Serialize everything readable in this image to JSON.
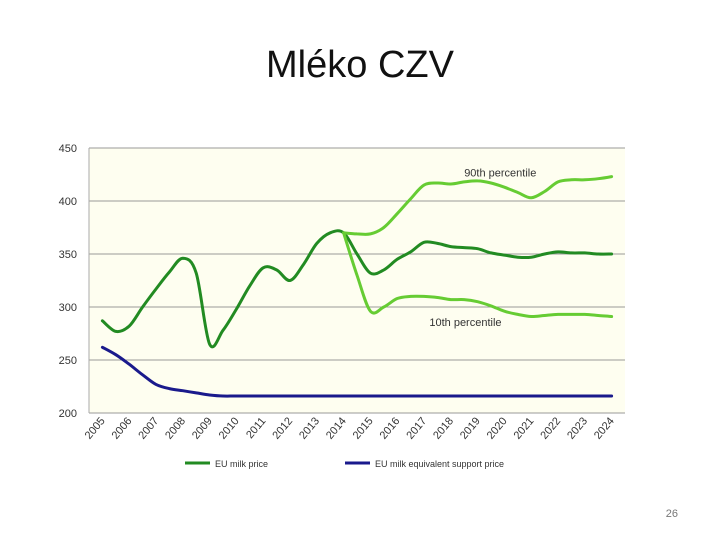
{
  "slide": {
    "title": "Mléko CZV",
    "page_number": "26"
  },
  "chart_data": {
    "type": "line",
    "title": "",
    "xlabel": "",
    "ylabel": "",
    "categories": [
      "2005",
      "2006",
      "2007",
      "2008",
      "2009",
      "2010",
      "2011",
      "2012",
      "2013",
      "2014",
      "2015",
      "2016",
      "2017",
      "2018",
      "2019",
      "2020",
      "2021",
      "2022",
      "2023",
      "2024"
    ],
    "x": [
      2005,
      2006,
      2007,
      2008,
      2009,
      2010,
      2011,
      2012,
      2013,
      2014,
      2015,
      2016,
      2017,
      2018,
      2019,
      2020,
      2021,
      2022,
      2023,
      2024
    ],
    "ylim": [
      200,
      450
    ],
    "yticks": [
      200,
      250,
      300,
      350,
      400,
      450
    ],
    "grid": true,
    "legend_position": "bottom",
    "colors": {
      "plot_background": "#fefef0",
      "gridline": "#999999",
      "axis_text": "#333333"
    },
    "series": [
      {
        "name": "EU milk price",
        "color": "#228B22",
        "in_legend": true,
        "x": [
          2005,
          2005.5,
          2006,
          2006.5,
          2007,
          2007.5,
          2008,
          2008.5,
          2009,
          2009.5,
          2010,
          2010.5,
          2011,
          2011.5,
          2012,
          2012.5,
          2013,
          2013.5,
          2014,
          2014.5,
          2015,
          2015.5,
          2016,
          2016.5,
          2017,
          2017.5,
          2018,
          2018.5,
          2019,
          2019.5,
          2020,
          2020.5,
          2021,
          2021.5,
          2022,
          2022.5,
          2023,
          2023.5,
          2024
        ],
        "values": [
          287,
          277,
          282,
          300,
          317,
          333,
          346,
          332,
          265,
          278,
          298,
          320,
          337,
          335,
          325,
          340,
          360,
          370,
          370,
          350,
          332,
          335,
          345,
          352,
          361,
          360,
          357,
          356,
          355,
          351,
          349,
          347,
          347,
          350,
          352,
          351,
          351,
          350,
          350
        ]
      },
      {
        "name": "90th percentile",
        "color": "#66CC33",
        "in_legend": false,
        "x": [
          2014,
          2014.5,
          2015,
          2015.5,
          2016,
          2016.5,
          2017,
          2017.5,
          2018,
          2018.5,
          2019,
          2019.5,
          2020,
          2020.5,
          2021,
          2021.5,
          2022,
          2022.5,
          2023,
          2023.5,
          2024
        ],
        "values": [
          370,
          369,
          369,
          375,
          388,
          402,
          415,
          417,
          416,
          418,
          419,
          417,
          413,
          408,
          403,
          409,
          418,
          420,
          420,
          421,
          423
        ]
      },
      {
        "name": "10th percentile",
        "color": "#66CC33",
        "in_legend": false,
        "x": [
          2014,
          2014.5,
          2015,
          2015.5,
          2016,
          2016.5,
          2017,
          2017.5,
          2018,
          2018.5,
          2019,
          2019.5,
          2020,
          2020.5,
          2021,
          2021.5,
          2022,
          2022.5,
          2023,
          2023.5,
          2024
        ],
        "values": [
          370,
          330,
          296,
          300,
          308,
          310,
          310,
          309,
          307,
          307,
          305,
          301,
          296,
          293,
          291,
          292,
          293,
          293,
          293,
          292,
          291
        ]
      },
      {
        "name": "EU milk equivalent support price",
        "color": "#1a1a8c",
        "in_legend": true,
        "x": [
          2005,
          2005.5,
          2006,
          2006.5,
          2007,
          2007.5,
          2008,
          2008.5,
          2009,
          2009.5,
          2010,
          2011,
          2012,
          2013,
          2014,
          2015,
          2016,
          2017,
          2018,
          2019,
          2020,
          2021,
          2022,
          2023,
          2024
        ],
        "values": [
          262,
          255,
          246,
          236,
          227,
          223,
          221,
          219,
          217,
          216,
          216,
          216,
          216,
          216,
          216,
          216,
          216,
          216,
          216,
          216,
          216,
          216,
          216,
          216,
          216
        ]
      }
    ],
    "annotations": [
      {
        "text": "90th percentile",
        "x": 2018.5,
        "y": 423
      },
      {
        "text": "10th percentile",
        "x": 2017.2,
        "y": 282
      }
    ]
  }
}
